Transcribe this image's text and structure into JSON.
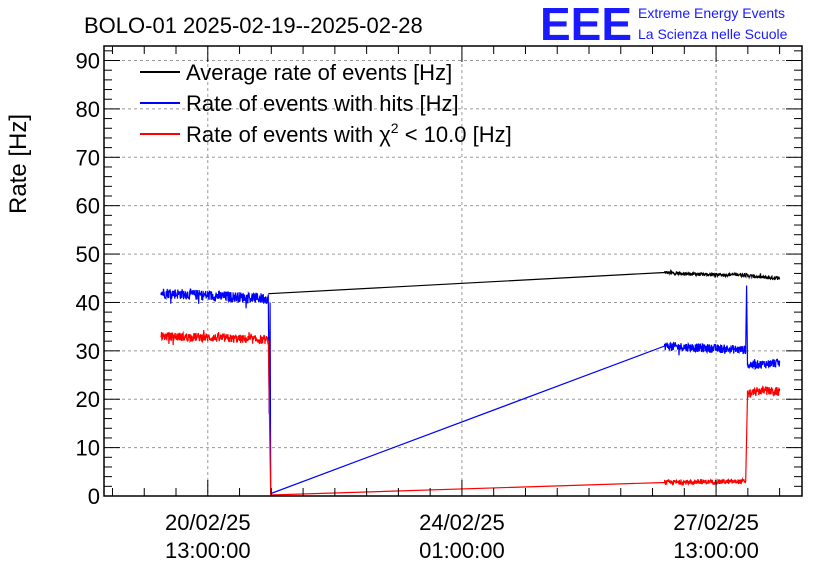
{
  "chart_data": {
    "type": "line",
    "title": "BOLO-01 2025-02-19--2025-02-28",
    "ylabel": "Rate [Hz]",
    "xlabel": "",
    "ylim": [
      0,
      93
    ],
    "yticks": [
      0,
      10,
      20,
      30,
      40,
      50,
      60,
      70,
      80,
      90
    ],
    "x_unit": "hours since 2025-02-19 00:00",
    "xlim": [
      2.7,
      233.4
    ],
    "xticks": [
      {
        "x": 37,
        "date": "20/02/25",
        "time": "13:00:00"
      },
      {
        "x": 121,
        "date": "24/02/25",
        "time": "01:00:00"
      },
      {
        "x": 205,
        "date": "27/02/25",
        "time": "13:00:00"
      }
    ],
    "grid": true,
    "legend_position": "top-left",
    "series": [
      {
        "name": "Average rate of events [Hz]",
        "color": "#000000",
        "points": [
          [
            57.0,
            41.8
          ],
          [
            188.0,
            46.2
          ],
          [
            193,
            46.0
          ],
          [
            200,
            45.8
          ],
          [
            207,
            45.7
          ],
          [
            213,
            45.8
          ],
          [
            220,
            45.2
          ],
          [
            226,
            45.0
          ]
        ],
        "noise": 0.35
      },
      {
        "name": "Rate of events with hits [Hz]",
        "color": "#0000ff",
        "points": [
          [
            21.5,
            42.0
          ],
          [
            35,
            41.5
          ],
          [
            50,
            41.0
          ],
          [
            57.0,
            40.8
          ],
          [
            57.3,
            17.0
          ],
          [
            57.6,
            40.0
          ],
          [
            57.8,
            0.5
          ],
          [
            188.0,
            31.0
          ],
          [
            200,
            30.6
          ],
          [
            214.8,
            30.2
          ],
          [
            215.1,
            43.5
          ],
          [
            215.4,
            27.0
          ],
          [
            226,
            27.5
          ]
        ],
        "noise_segments": [
          [
            21.5,
            57.0,
            1.1
          ],
          [
            188.0,
            214.8,
            0.9
          ],
          [
            215.4,
            226,
            0.9
          ]
        ]
      },
      {
        "name": "Rate of events with χ² < 10.0 [Hz]",
        "color": "#ff0000",
        "points": [
          [
            21.5,
            33.0
          ],
          [
            35,
            32.8
          ],
          [
            57.0,
            32.2
          ],
          [
            57.8,
            0.2
          ],
          [
            188.0,
            2.8
          ],
          [
            200,
            2.9
          ],
          [
            214.8,
            3.0
          ],
          [
            215.4,
            21.0
          ],
          [
            220,
            21.8
          ],
          [
            226,
            21.5
          ]
        ],
        "noise_segments": [
          [
            21.5,
            57.0,
            0.9
          ],
          [
            188.0,
            214.8,
            0.5
          ],
          [
            215.4,
            226,
            0.9
          ]
        ]
      }
    ]
  },
  "legend": [
    {
      "label": "Average rate of events [Hz]",
      "color": "#000000"
    },
    {
      "label": "Rate of events with hits [Hz]",
      "color": "#0000ff"
    },
    {
      "label_pre": "Rate of events with ",
      "label_chi": "χ",
      "label_sup": "2",
      "label_post": " < 10.0 [Hz]",
      "color": "#ff0000"
    }
  ],
  "logo": {
    "mark": "EEE",
    "line1": "Extreme Energy Events",
    "line2": "La Scienza nelle Scuole"
  }
}
